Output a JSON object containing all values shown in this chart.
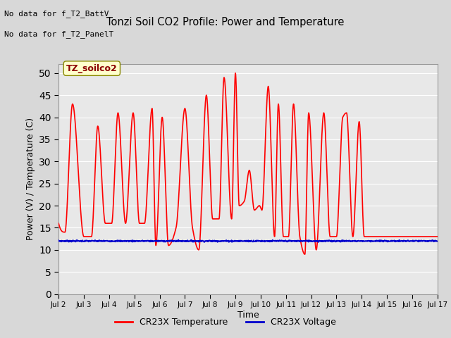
{
  "title": "Tonzi Soil CO2 Profile: Power and Temperature",
  "ylabel": "Power (V) / Temperature (C)",
  "xlabel": "Time",
  "top_left_text1": "No data for f_T2_BattV",
  "top_left_text2": "No data for f_T2_PanelT",
  "legend_label_box": "TZ_soilco2",
  "ylim": [
    0,
    52
  ],
  "yticks": [
    0,
    5,
    10,
    15,
    20,
    25,
    30,
    35,
    40,
    45,
    50
  ],
  "xtick_labels": [
    "Jul 2",
    "Jul 3",
    "Jul 4",
    "Jul 5",
    "Jul 6",
    "Jul 7",
    "Jul 8",
    "Jul 9",
    "Jul 10",
    "Jul 11",
    "Jul 12",
    "Jul 13",
    "Jul 14",
    "Jul 15",
    "Jul 16",
    "Jul 17"
  ],
  "background_color": "#d8d8d8",
  "plot_bg_color": "#e8e8e8",
  "grid_color": "#ffffff",
  "temp_color": "#ff0000",
  "volt_color": "#0000cc",
  "temp_linewidth": 1.2,
  "volt_linewidth": 1.5,
  "legend_temp": "CR23X Temperature",
  "legend_volt": "CR23X Voltage",
  "volt_value": 12.0,
  "keypoints_x": [
    0,
    0.25,
    0.55,
    1.0,
    1.3,
    1.55,
    1.85,
    2.1,
    2.35,
    2.65,
    2.95,
    3.2,
    3.4,
    3.7,
    3.85,
    4.1,
    4.35,
    4.65,
    5.0,
    5.3,
    5.55,
    5.85,
    6.1,
    6.35,
    6.55,
    6.85,
    7.0,
    7.15,
    7.35,
    7.55,
    7.75,
    7.95,
    8.05,
    8.3,
    8.55,
    8.7,
    8.9,
    9.1,
    9.3,
    9.55,
    9.75,
    9.9,
    10.2,
    10.5,
    10.75,
    11.0,
    11.25,
    11.4,
    11.65,
    11.9,
    12.1,
    12.35,
    12.55,
    12.8,
    13.0,
    13.25,
    13.45,
    13.65,
    13.85,
    14.1,
    14.35,
    14.55,
    14.75,
    15.0
  ],
  "keypoints_y": [
    16,
    14,
    43,
    13,
    13,
    38,
    16,
    16,
    41,
    16,
    41,
    16,
    16,
    42,
    11,
    40,
    11,
    15,
    42,
    15,
    10,
    45,
    17,
    17,
    49,
    17,
    50,
    20,
    21,
    28,
    19,
    20,
    19,
    47,
    13,
    43,
    13,
    13,
    43,
    13,
    9,
    41,
    10,
    41,
    13,
    13,
    40,
    41,
    13,
    39,
    13,
    13,
    13,
    13,
    13,
    13,
    13,
    13,
    13,
    13,
    13,
    13,
    13,
    13
  ]
}
